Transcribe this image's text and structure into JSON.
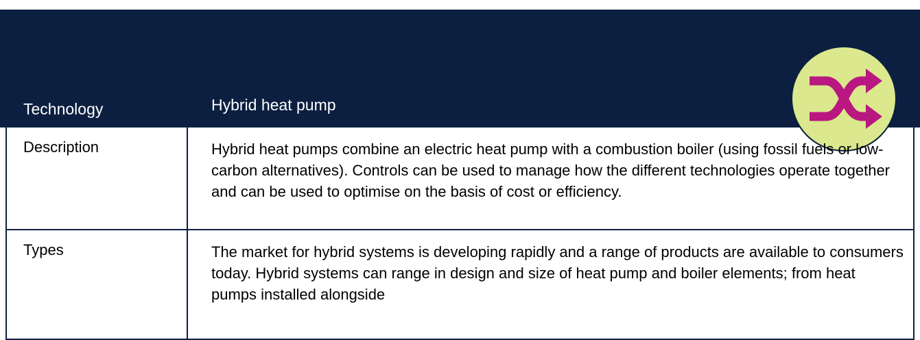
{
  "header": {
    "label": "Technology",
    "value": "Hybrid heat pump"
  },
  "rows": [
    {
      "label": "Description",
      "text": "Hybrid heat pumps combine an electric heat pump with a combustion boiler (using fossil fuels or low-carbon alternatives). Controls can be used to manage how the different technologies operate together and can be used to optimise on the basis of cost or efficiency."
    },
    {
      "label": "Types",
      "text": "The market for hybrid systems is developing rapidly and a range of products are available to consumers today. Hybrid systems can range in design and size of heat pump and boiler elements; from heat pumps installed alongside"
    }
  ]
}
